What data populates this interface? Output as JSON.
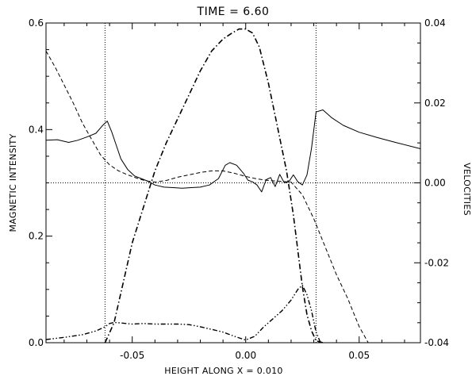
{
  "chart_data": {
    "type": "line",
    "title": "TIME = 6.60",
    "xlabel": "HEIGHT ALONG X = 0.010",
    "ylabel_left": "MAGNETIC INTENSITY",
    "ylabel_right": "VELOCITIES",
    "xlim": [
      -0.088,
      0.077
    ],
    "ylim_left": [
      0.0,
      0.6
    ],
    "ylim_right": [
      -0.04,
      0.04
    ],
    "x_ticks": [
      "-0.05",
      "0.00",
      "0.05"
    ],
    "x_tick_values": [
      -0.05,
      0.0,
      0.05
    ],
    "y_left_ticks": [
      "0.0",
      "0.2",
      "0.4",
      "0.6"
    ],
    "y_left_tick_values": [
      0.0,
      0.2,
      0.4,
      0.6
    ],
    "y_right_ticks": [
      "-0.04",
      "-0.02",
      "0.00",
      "0.02",
      "0.04"
    ],
    "y_right_tick_values": [
      -0.04,
      -0.02,
      0.0,
      0.02,
      0.04
    ],
    "reference_lines": {
      "vertical_x": [
        -0.062,
        0.031
      ],
      "horizontal_right_axis_y": 0.0
    },
    "series": [
      {
        "style": "solid",
        "axis": "left",
        "x": [
          -0.088,
          -0.083,
          -0.078,
          -0.074,
          -0.07,
          -0.066,
          -0.063,
          -0.061,
          -0.059,
          -0.057,
          -0.055,
          -0.052,
          -0.049,
          -0.046,
          -0.043,
          -0.04,
          -0.036,
          -0.032,
          -0.028,
          -0.024,
          -0.02,
          -0.016,
          -0.012,
          -0.009,
          -0.007,
          -0.004,
          -0.001,
          0.001,
          0.003,
          0.005,
          0.007,
          0.009,
          0.011,
          0.013,
          0.015,
          0.017,
          0.019,
          0.021,
          0.023,
          0.025,
          0.027,
          0.029,
          0.031,
          0.034,
          0.038,
          0.043,
          0.05,
          0.058,
          0.066,
          0.077
        ],
        "y": [
          0.38,
          0.381,
          0.376,
          0.38,
          0.386,
          0.393,
          0.408,
          0.416,
          0.395,
          0.37,
          0.345,
          0.325,
          0.313,
          0.308,
          0.303,
          0.296,
          0.292,
          0.291,
          0.29,
          0.291,
          0.292,
          0.296,
          0.308,
          0.333,
          0.338,
          0.333,
          0.318,
          0.305,
          0.302,
          0.296,
          0.283,
          0.306,
          0.31,
          0.293,
          0.316,
          0.3,
          0.302,
          0.315,
          0.302,
          0.296,
          0.315,
          0.365,
          0.433,
          0.437,
          0.422,
          0.408,
          0.395,
          0.385,
          0.376,
          0.364
        ]
      },
      {
        "style": "dashed",
        "axis": "right",
        "x": [
          -0.088,
          -0.084,
          -0.08,
          -0.076,
          -0.072,
          -0.068,
          -0.064,
          -0.06,
          -0.056,
          -0.052,
          -0.048,
          -0.044,
          -0.04,
          -0.035,
          -0.03,
          -0.025,
          -0.02,
          -0.015,
          -0.01,
          -0.005,
          0.0,
          0.005,
          0.01,
          0.015,
          0.02,
          0.025,
          0.03,
          0.035,
          0.04,
          0.045,
          0.05,
          0.054
        ],
        "y": [
          0.033,
          0.029,
          0.0245,
          0.02,
          0.015,
          0.011,
          0.007,
          0.0045,
          0.003,
          0.002,
          0.0012,
          0.0005,
          0.0002,
          0.0006,
          0.0014,
          0.002,
          0.0026,
          0.003,
          0.003,
          0.0024,
          0.0016,
          0.001,
          0.0006,
          0.0004,
          0.0002,
          -0.003,
          -0.009,
          -0.016,
          -0.023,
          -0.029,
          -0.036,
          -0.04
        ]
      },
      {
        "style": "dash-dot",
        "axis": "right",
        "x": [
          -0.062,
          -0.058,
          -0.054,
          -0.05,
          -0.045,
          -0.04,
          -0.035,
          -0.03,
          -0.025,
          -0.02,
          -0.015,
          -0.01,
          -0.006,
          -0.003,
          0.0,
          0.003,
          0.006,
          0.01,
          0.014,
          0.018,
          0.021,
          0.023,
          0.025,
          0.027,
          0.029,
          0.031,
          0.034
        ],
        "y": [
          -0.04,
          -0.035,
          -0.025,
          -0.015,
          -0.006,
          0.003,
          0.01,
          0.016,
          0.022,
          0.028,
          0.033,
          0.036,
          0.0375,
          0.0385,
          0.0385,
          0.0375,
          0.034,
          0.025,
          0.014,
          0.003,
          -0.008,
          -0.017,
          -0.026,
          -0.033,
          -0.037,
          -0.0395,
          -0.04
        ]
      },
      {
        "style": "dash-dot-dot",
        "axis": "left",
        "x": [
          -0.088,
          -0.08,
          -0.072,
          -0.066,
          -0.062,
          -0.06,
          -0.058,
          -0.055,
          -0.05,
          -0.045,
          -0.04,
          -0.035,
          -0.03,
          -0.025,
          -0.02,
          -0.015,
          -0.01,
          -0.005,
          0.0,
          0.004,
          0.008,
          0.012,
          0.016,
          0.02,
          0.023,
          0.025,
          0.027,
          0.029,
          0.031,
          0.033
        ],
        "y": [
          0.006,
          0.01,
          0.015,
          0.022,
          0.03,
          0.036,
          0.038,
          0.037,
          0.035,
          0.036,
          0.035,
          0.035,
          0.035,
          0.034,
          0.03,
          0.025,
          0.02,
          0.012,
          0.005,
          0.012,
          0.03,
          0.045,
          0.06,
          0.08,
          0.1,
          0.108,
          0.09,
          0.06,
          0.02,
          0.0
        ]
      }
    ]
  }
}
